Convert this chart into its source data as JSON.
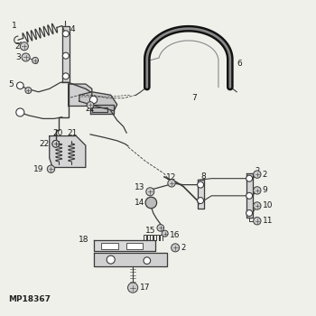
{
  "bg_color": "#f0f0eb",
  "line_color": "#3a3a3a",
  "watermark": "MP18367",
  "font_size": 6.5,
  "label_color": "#1a1a1a"
}
